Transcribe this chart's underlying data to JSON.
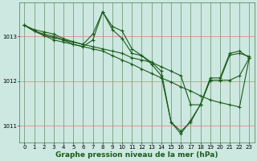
{
  "background_color": "#cce8e0",
  "grid_color_v": "#4a7a4a",
  "grid_color_h": "#ee7777",
  "line_color": "#1a5c1a",
  "marker": "+",
  "markersize": 3,
  "linewidth": 0.8,
  "xlabel": "Graphe pression niveau de la mer (hPa)",
  "xlabel_fontsize": 6.5,
  "tick_fontsize": 5.0,
  "xlim": [
    -0.5,
    23.5
  ],
  "ylim": [
    1010.62,
    1013.75
  ],
  "yticks": [
    1011,
    1012,
    1013
  ],
  "xticks": [
    0,
    1,
    2,
    3,
    4,
    5,
    6,
    7,
    8,
    9,
    10,
    11,
    12,
    13,
    14,
    15,
    16,
    17,
    18,
    19,
    20,
    21,
    22,
    23
  ],
  "series": [
    [
      1013.25,
      1013.15,
      1013.1,
      1013.05,
      1012.95,
      1012.88,
      1012.82,
      1013.05,
      1013.55,
      1013.15,
      1012.95,
      1012.62,
      1012.57,
      1012.38,
      1012.12,
      1011.08,
      1010.88,
      1011.08,
      1011.48,
      1012.02,
      1012.02,
      1012.58,
      1012.62,
      1012.55
    ],
    [
      1013.25,
      1013.12,
      1013.05,
      1013.0,
      1012.92,
      1012.82,
      1012.77,
      1012.72,
      1012.67,
      1012.57,
      1012.47,
      1012.38,
      1012.27,
      1012.17,
      1012.07,
      1011.98,
      1011.87,
      1011.78,
      1011.67,
      1011.58,
      1011.52,
      1011.47,
      1011.42,
      1012.52
    ],
    [
      1013.25,
      1013.12,
      1013.02,
      1012.92,
      1012.87,
      1012.82,
      1012.77,
      1012.92,
      1013.55,
      1013.22,
      1013.12,
      1012.72,
      1012.57,
      1012.42,
      1012.22,
      1011.08,
      1010.82,
      1011.12,
      1011.47,
      1012.07,
      1012.07,
      1012.62,
      1012.67,
      1012.52
    ],
    [
      1013.25,
      1013.12,
      1013.02,
      1012.97,
      1012.92,
      1012.87,
      1012.82,
      1012.77,
      1012.72,
      1012.67,
      1012.62,
      1012.52,
      1012.47,
      1012.42,
      1012.32,
      1012.22,
      1012.12,
      1011.47,
      1011.47,
      1012.02,
      1012.02,
      1012.02,
      1012.12,
      1012.52
    ]
  ]
}
